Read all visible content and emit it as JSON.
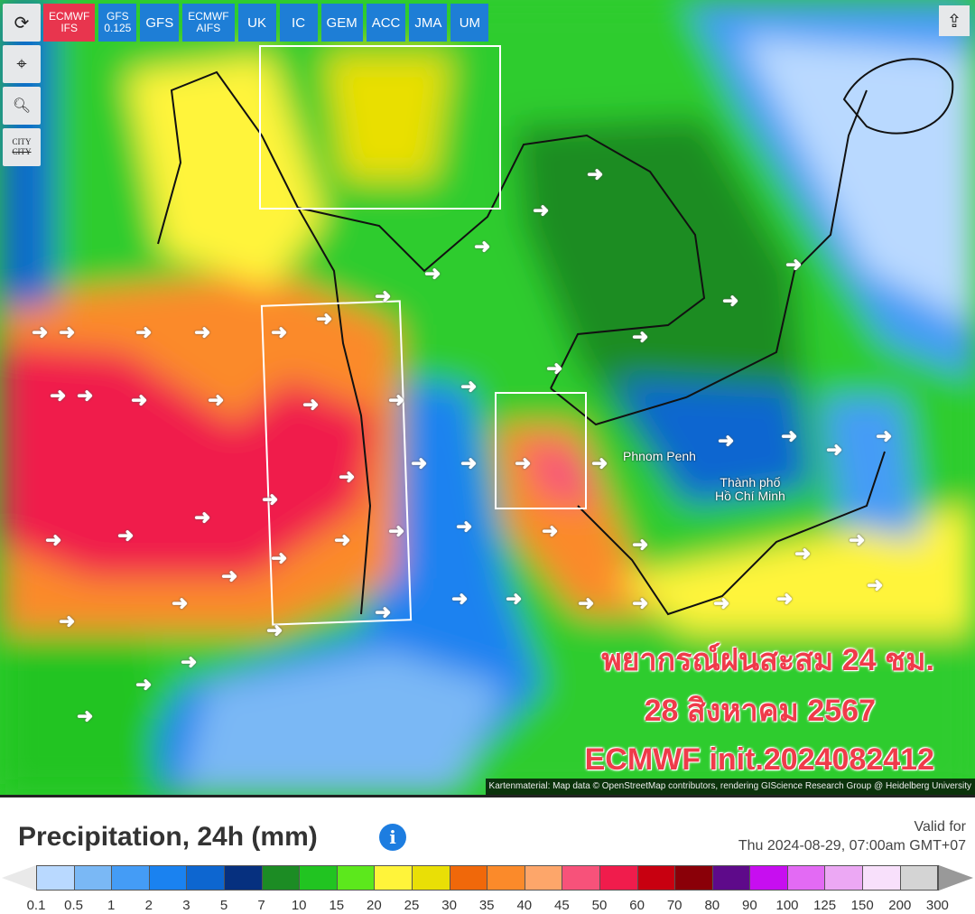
{
  "toolbar": {
    "tools": [
      {
        "icon": "refresh-icon"
      },
      {
        "icon": "location-pin-icon"
      },
      {
        "icon": "zoom-out-icon"
      },
      {
        "icon": "city-toggle-icon",
        "label": "CITY"
      }
    ],
    "models": [
      {
        "label": "ECMWF IFS",
        "active": true
      },
      {
        "label": "GFS 0.125"
      },
      {
        "label": "GFS"
      },
      {
        "label": "ECMWF AIFS"
      },
      {
        "label": "UK"
      },
      {
        "label": "IC"
      },
      {
        "label": "GEM"
      },
      {
        "label": "ACC"
      },
      {
        "label": "JMA"
      },
      {
        "label": "UM"
      }
    ],
    "share_icon": "share-icon"
  },
  "map": {
    "cities": [
      "Phnom Penh",
      "Thành phố\nHồ Chí Minh"
    ],
    "headline": [
      "พยากรณ์ฝนสะสม 24 ชม.",
      "28 สิงหาคม 2567",
      "ECMWF init.2024082412"
    ],
    "attribution": "Kartenmaterial: Map data © OpenStreetMap contributors, rendering GIScience Research Group @ Heidelberg University"
  },
  "legend": {
    "title": "Precipitation, 24h (mm)",
    "info_icon": "info-icon",
    "valid_label": "Valid for",
    "valid_time": "Thu 2024-08-29, 07:00am GMT+07",
    "colors": [
      "#b9d9ff",
      "#7ab8f5",
      "#449cf6",
      "#1a82f0",
      "#0d66d0",
      "#06307f",
      "#1c8c24",
      "#21c421",
      "#5ce81c",
      "#fff43a",
      "#e9df06",
      "#f0680a",
      "#fb8a2a",
      "#fda66a",
      "#f7527a",
      "#f01c4c",
      "#c80010",
      "#8a0008",
      "#5e0a8a",
      "#c70ef0",
      "#e36af4",
      "#eca8f4",
      "#f8e0fb",
      "#d4d4d4"
    ],
    "ticks": [
      "0.1",
      "0.5",
      "1",
      "2",
      "3",
      "5",
      "7",
      "10",
      "15",
      "20",
      "25",
      "30",
      "35",
      "40",
      "45",
      "50",
      "60",
      "70",
      "80",
      "90",
      "100",
      "125",
      "150",
      "200",
      "300"
    ]
  }
}
